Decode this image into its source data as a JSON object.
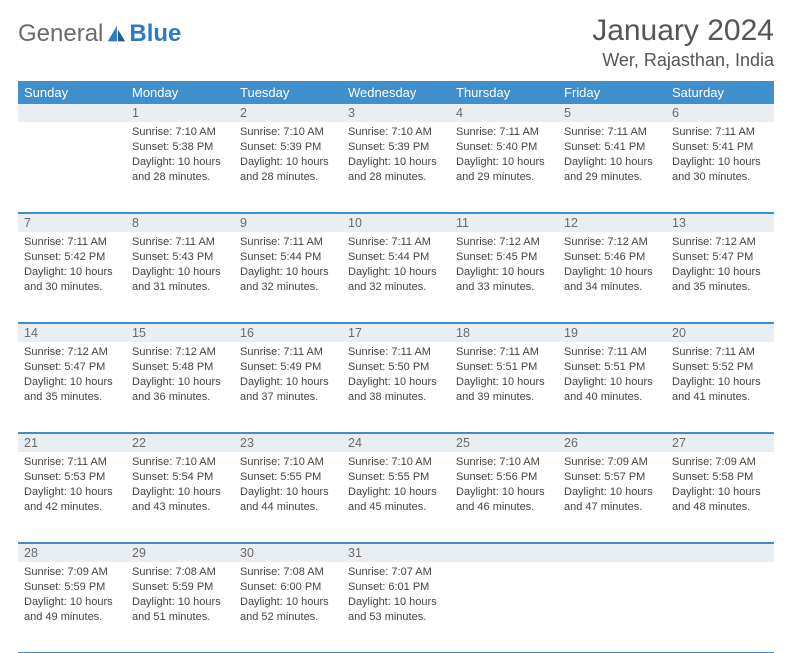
{
  "brand": {
    "general": "General",
    "blue": "Blue"
  },
  "title": "January 2024",
  "location": "Wer, Rajasthan, India",
  "colors": {
    "header_bg": "#3f8fcc",
    "header_text": "#ffffff",
    "daynum_bg": "#e9eef2",
    "daynum_text": "#6a6a6a",
    "cell_text": "#444444",
    "rule": "#3f8fcc",
    "brand_gray": "#6a6a6a",
    "brand_blue": "#2f7bbf"
  },
  "day_names": [
    "Sunday",
    "Monday",
    "Tuesday",
    "Wednesday",
    "Thursday",
    "Friday",
    "Saturday"
  ],
  "weeks": [
    {
      "nums": [
        "",
        "1",
        "2",
        "3",
        "4",
        "5",
        "6"
      ],
      "cells": [
        "",
        "Sunrise: 7:10 AM\nSunset: 5:38 PM\nDaylight: 10 hours and 28 minutes.",
        "Sunrise: 7:10 AM\nSunset: 5:39 PM\nDaylight: 10 hours and 28 minutes.",
        "Sunrise: 7:10 AM\nSunset: 5:39 PM\nDaylight: 10 hours and 28 minutes.",
        "Sunrise: 7:11 AM\nSunset: 5:40 PM\nDaylight: 10 hours and 29 minutes.",
        "Sunrise: 7:11 AM\nSunset: 5:41 PM\nDaylight: 10 hours and 29 minutes.",
        "Sunrise: 7:11 AM\nSunset: 5:41 PM\nDaylight: 10 hours and 30 minutes."
      ]
    },
    {
      "nums": [
        "7",
        "8",
        "9",
        "10",
        "11",
        "12",
        "13"
      ],
      "cells": [
        "Sunrise: 7:11 AM\nSunset: 5:42 PM\nDaylight: 10 hours and 30 minutes.",
        "Sunrise: 7:11 AM\nSunset: 5:43 PM\nDaylight: 10 hours and 31 minutes.",
        "Sunrise: 7:11 AM\nSunset: 5:44 PM\nDaylight: 10 hours and 32 minutes.",
        "Sunrise: 7:11 AM\nSunset: 5:44 PM\nDaylight: 10 hours and 32 minutes.",
        "Sunrise: 7:12 AM\nSunset: 5:45 PM\nDaylight: 10 hours and 33 minutes.",
        "Sunrise: 7:12 AM\nSunset: 5:46 PM\nDaylight: 10 hours and 34 minutes.",
        "Sunrise: 7:12 AM\nSunset: 5:47 PM\nDaylight: 10 hours and 35 minutes."
      ]
    },
    {
      "nums": [
        "14",
        "15",
        "16",
        "17",
        "18",
        "19",
        "20"
      ],
      "cells": [
        "Sunrise: 7:12 AM\nSunset: 5:47 PM\nDaylight: 10 hours and 35 minutes.",
        "Sunrise: 7:12 AM\nSunset: 5:48 PM\nDaylight: 10 hours and 36 minutes.",
        "Sunrise: 7:11 AM\nSunset: 5:49 PM\nDaylight: 10 hours and 37 minutes.",
        "Sunrise: 7:11 AM\nSunset: 5:50 PM\nDaylight: 10 hours and 38 minutes.",
        "Sunrise: 7:11 AM\nSunset: 5:51 PM\nDaylight: 10 hours and 39 minutes.",
        "Sunrise: 7:11 AM\nSunset: 5:51 PM\nDaylight: 10 hours and 40 minutes.",
        "Sunrise: 7:11 AM\nSunset: 5:52 PM\nDaylight: 10 hours and 41 minutes."
      ]
    },
    {
      "nums": [
        "21",
        "22",
        "23",
        "24",
        "25",
        "26",
        "27"
      ],
      "cells": [
        "Sunrise: 7:11 AM\nSunset: 5:53 PM\nDaylight: 10 hours and 42 minutes.",
        "Sunrise: 7:10 AM\nSunset: 5:54 PM\nDaylight: 10 hours and 43 minutes.",
        "Sunrise: 7:10 AM\nSunset: 5:55 PM\nDaylight: 10 hours and 44 minutes.",
        "Sunrise: 7:10 AM\nSunset: 5:55 PM\nDaylight: 10 hours and 45 minutes.",
        "Sunrise: 7:10 AM\nSunset: 5:56 PM\nDaylight: 10 hours and 46 minutes.",
        "Sunrise: 7:09 AM\nSunset: 5:57 PM\nDaylight: 10 hours and 47 minutes.",
        "Sunrise: 7:09 AM\nSunset: 5:58 PM\nDaylight: 10 hours and 48 minutes."
      ]
    },
    {
      "nums": [
        "28",
        "29",
        "30",
        "31",
        "",
        "",
        ""
      ],
      "cells": [
        "Sunrise: 7:09 AM\nSunset: 5:59 PM\nDaylight: 10 hours and 49 minutes.",
        "Sunrise: 7:08 AM\nSunset: 5:59 PM\nDaylight: 10 hours and 51 minutes.",
        "Sunrise: 7:08 AM\nSunset: 6:00 PM\nDaylight: 10 hours and 52 minutes.",
        "Sunrise: 7:07 AM\nSunset: 6:01 PM\nDaylight: 10 hours and 53 minutes.",
        "",
        "",
        ""
      ]
    }
  ]
}
